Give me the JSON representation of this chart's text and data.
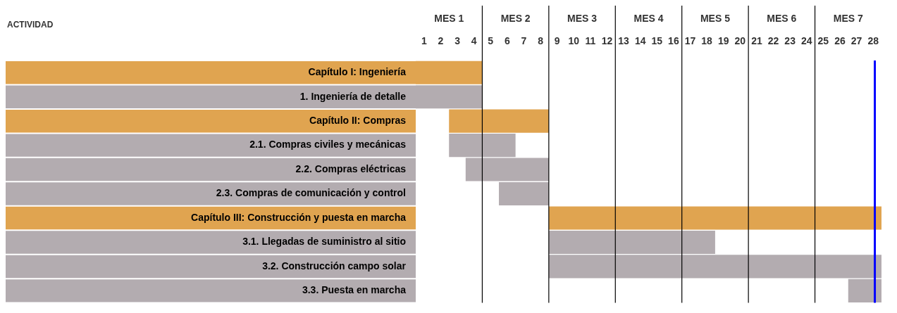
{
  "chart_data": {
    "type": "bar",
    "orientation": "horizontal",
    "categories": [
      "Capítulo I: Ingeniería",
      "1. Ingeniería de detalle",
      "Capítulo II: Compras",
      "2.1. Compras civiles y mecánicas",
      "2.2. Compras eléctricas",
      "2.3. Compras de comunicación y control",
      "Capítulo III: Construcción y puesta en marcha",
      "3.1. Llegadas de suministro al sitio",
      "3.2. Construcción campo solar",
      "3.3. Puesta en marcha"
    ],
    "base": [
      0,
      0,
      2,
      2,
      3,
      5,
      8,
      8,
      8,
      26
    ],
    "values": [
      4,
      4,
      6,
      4,
      5,
      3,
      20,
      10,
      20,
      2
    ],
    "colors": [
      "#e0a450",
      "#b3acb0",
      "#e0a450",
      "#b3acb0",
      "#b3acb0",
      "#b3acb0",
      "#e0a450",
      "#b3acb0",
      "#b3acb0",
      "#b3acb0"
    ],
    "xlim": [
      0,
      28
    ],
    "xticks": [
      {
        "value": 0.5,
        "label": "1"
      },
      {
        "value": 1.5,
        "label": "2"
      },
      {
        "value": 2.5,
        "label": "3"
      },
      {
        "value": 3.5,
        "label": "4"
      },
      {
        "value": 4.5,
        "label": "5"
      },
      {
        "value": 5.5,
        "label": "6"
      },
      {
        "value": 6.5,
        "label": "7"
      },
      {
        "value": 7.5,
        "label": "8"
      },
      {
        "value": 8.5,
        "label": "9"
      },
      {
        "value": 9.5,
        "label": "10"
      },
      {
        "value": 10.5,
        "label": "11"
      },
      {
        "value": 11.5,
        "label": "12"
      },
      {
        "value": 12.5,
        "label": "13"
      },
      {
        "value": 13.5,
        "label": "14"
      },
      {
        "value": 14.5,
        "label": "15"
      },
      {
        "value": 15.5,
        "label": "16"
      },
      {
        "value": 16.5,
        "label": "17"
      },
      {
        "value": 17.5,
        "label": "18"
      },
      {
        "value": 18.5,
        "label": "19"
      },
      {
        "value": 19.5,
        "label": "20"
      },
      {
        "value": 20.5,
        "label": "21"
      },
      {
        "value": 21.5,
        "label": "22"
      },
      {
        "value": 22.5,
        "label": "23"
      },
      {
        "value": 23.5,
        "label": "24"
      },
      {
        "value": 24.5,
        "label": "25"
      },
      {
        "value": 25.5,
        "label": "26"
      },
      {
        "value": 26.5,
        "label": "27"
      },
      {
        "value": 27.5,
        "label": "28"
      }
    ],
    "annotations": [
      "ACTIVIDAD",
      "MES 1",
      "MES 2",
      "MES 3",
      "MES 4",
      "MES 5",
      "MES 6",
      "MES 7"
    ],
    "ref_lines": [
      {
        "axis": "x",
        "value": 4,
        "color": "#000000"
      },
      {
        "axis": "x",
        "value": 8,
        "color": "#000000"
      },
      {
        "axis": "x",
        "value": 12,
        "color": "#000000"
      },
      {
        "axis": "x",
        "value": 16,
        "color": "#000000"
      },
      {
        "axis": "x",
        "value": 20,
        "color": "#000000"
      },
      {
        "axis": "x",
        "value": 24,
        "color": "#000000"
      },
      {
        "axis": "x",
        "value": 27.6,
        "color": "#0000ff"
      }
    ],
    "legend": false
  }
}
